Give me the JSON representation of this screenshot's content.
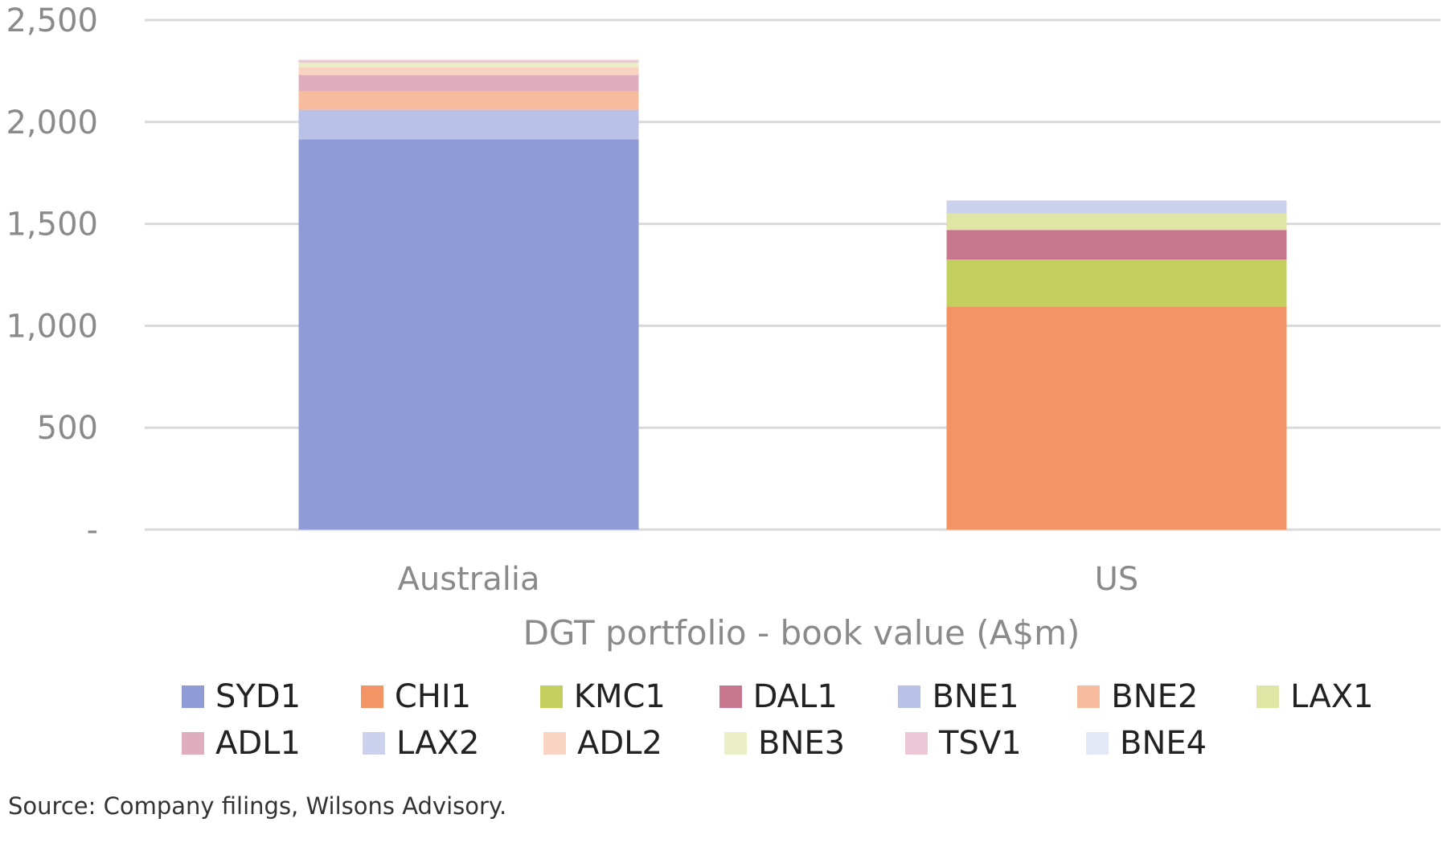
{
  "chart_data": {
    "type": "bar",
    "stacked": true,
    "categories": [
      "Australia",
      "US"
    ],
    "xlabel": "DGT portfolio - book value (A$m)",
    "ylabel": "",
    "ylim": [
      0,
      2500
    ],
    "yticks": [
      {
        "value": 0,
        "label": "-"
      },
      {
        "value": 500,
        "label": "500"
      },
      {
        "value": 1000,
        "label": "1,000"
      },
      {
        "value": 1500,
        "label": "1,500"
      },
      {
        "value": 2000,
        "label": "2,000"
      },
      {
        "value": 2500,
        "label": "2,500"
      }
    ],
    "grid": true,
    "legend_position": "bottom",
    "series": [
      {
        "name": "SYD1",
        "color": "#8e9bd6",
        "values": [
          1915,
          0
        ]
      },
      {
        "name": "CHI1",
        "color": "#f29466",
        "values": [
          0,
          1095
        ]
      },
      {
        "name": "KMC1",
        "color": "#c4d05e",
        "values": [
          0,
          230
        ]
      },
      {
        "name": "DAL1",
        "color": "#c6778f",
        "values": [
          0,
          145
        ]
      },
      {
        "name": "BNE1",
        "color": "#bac1e7",
        "values": [
          145,
          0
        ]
      },
      {
        "name": "BNE2",
        "color": "#f7bc9e",
        "values": [
          90,
          0
        ]
      },
      {
        "name": "LAX1",
        "color": "#dfe6a5",
        "values": [
          0,
          80
        ]
      },
      {
        "name": "ADL1",
        "color": "#e0adbf",
        "values": [
          80,
          0
        ]
      },
      {
        "name": "LAX2",
        "color": "#ccd2ee",
        "values": [
          0,
          65
        ]
      },
      {
        "name": "ADL2",
        "color": "#fad4c2",
        "values": [
          40,
          0
        ]
      },
      {
        "name": "BNE3",
        "color": "#ebefc8",
        "values": [
          20,
          0
        ]
      },
      {
        "name": "TSV1",
        "color": "#ecc8d6",
        "values": [
          15,
          0
        ]
      },
      {
        "name": "BNE4",
        "color": "#e4e7f6",
        "values": [
          0,
          0
        ]
      }
    ],
    "source": "Source: Company filings, Wilsons Advisory."
  }
}
